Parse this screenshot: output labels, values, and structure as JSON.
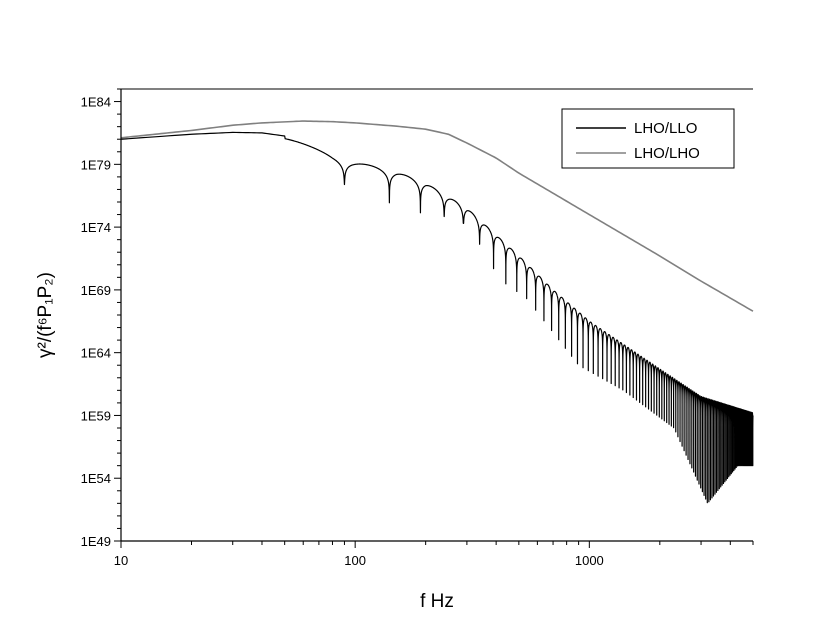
{
  "chart_data": {
    "type": "line",
    "title": "",
    "xlabel": "f Hz",
    "ylabel": "γ²/(f⁶P₁P₂)",
    "x_scale": "log",
    "y_scale": "log",
    "xlim": [
      10,
      5000
    ],
    "ylim": [
      1e+49,
      1e+85
    ],
    "x_ticks": [
      10,
      100,
      1000
    ],
    "x_tick_labels": [
      "10",
      "100",
      "1000"
    ],
    "y_ticks": [
      1e+49,
      1e+54,
      1e+59,
      1e+64,
      1e+69,
      1e+74,
      1e+79,
      1e+84
    ],
    "y_tick_labels": [
      "1E49",
      "1E54",
      "1E59",
      "1E64",
      "1E69",
      "1E74",
      "1E79",
      "1E84"
    ],
    "grid": false,
    "legend_position": "top-right",
    "series": [
      {
        "name": "LHO/LLO",
        "color": "#000000",
        "style": "oscillating upper envelope with deep periodic nulls",
        "envelope": [
          [
            10,
            1e+81
          ],
          [
            20,
            2.5e+81
          ],
          [
            30,
            3.5e+81
          ],
          [
            40,
            3.2e+81
          ],
          [
            50,
            1.8e+81
          ],
          [
            80,
            5e+79
          ],
          [
            100,
            1.6e+79
          ],
          [
            150,
            2.5e+78
          ],
          [
            200,
            3.2e+77
          ],
          [
            300,
            3.2e+75
          ],
          [
            500,
            5e+71
          ],
          [
            700,
            1e+69
          ],
          [
            1000,
            3.2e+66
          ],
          [
            2000,
            5e+62
          ],
          [
            3000,
            3.2e+60
          ],
          [
            5000,
            1.6e+59
          ]
        ],
        "nulls": [
          [
            65,
            2e+78
          ],
          [
            115,
            5e+76
          ],
          [
            165,
            2e+75
          ],
          [
            215,
            1e+75
          ],
          [
            265,
            5e+74
          ],
          [
            310,
            1e+74
          ],
          [
            355,
            1e+72
          ],
          [
            410,
            1e+70
          ],
          [
            470,
            1e+69
          ],
          [
            520,
            5e+68
          ],
          [
            900,
            1e+63
          ],
          [
            1400,
            1e+61
          ],
          [
            2300,
            1e+58
          ],
          [
            3200,
            1e+52
          ],
          [
            4300,
            1e+55
          ]
        ]
      },
      {
        "name": "LHO/LHO",
        "color": "#808080",
        "points": [
          [
            10,
            1.3e+81
          ],
          [
            20,
            5e+81
          ],
          [
            30,
            1.3e+82
          ],
          [
            40,
            2e+82
          ],
          [
            60,
            2.8e+82
          ],
          [
            80,
            2.5e+82
          ],
          [
            100,
            2e+82
          ],
          [
            150,
            1.1e+82
          ],
          [
            200,
            6.3e+81
          ],
          [
            250,
            2.5e+81
          ],
          [
            300,
            5e+80
          ],
          [
            400,
            3.2e+79
          ],
          [
            500,
            2e+78
          ],
          [
            700,
            5e+76
          ],
          [
            1000,
            1e+75
          ],
          [
            2000,
            5e+71
          ],
          [
            3000,
            5e+69
          ],
          [
            5000,
            2e+67
          ]
        ]
      }
    ]
  }
}
